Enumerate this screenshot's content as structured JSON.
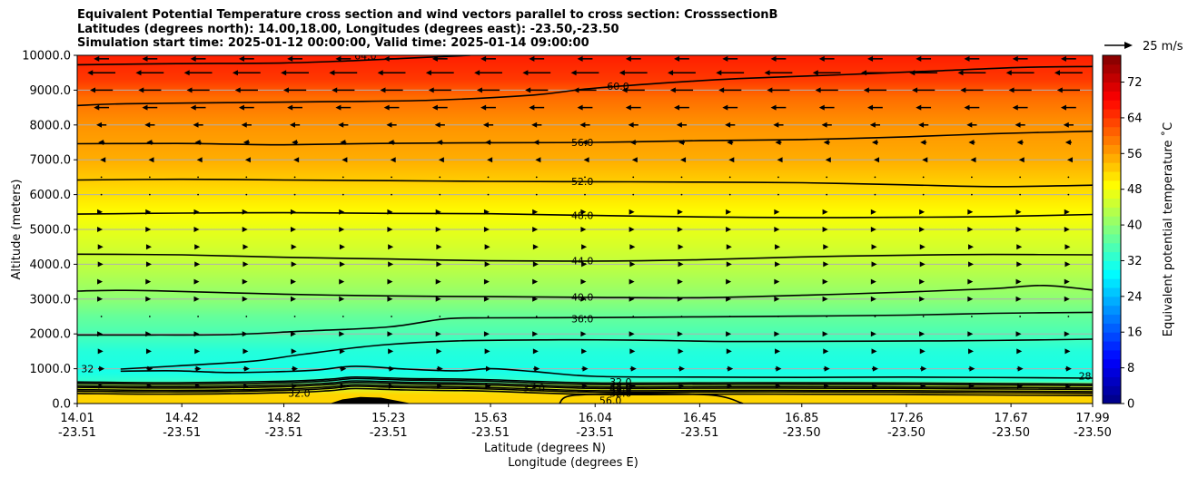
{
  "title_lines": [
    "Equivalent Potential Temperature cross section and wind vectors parallel to cross section: CrosssectionB",
    "Latitudes (degrees north): 14.00,18.00, Longitudes (degrees east): -23.50,-23.50",
    "Simulation start time: 2025-01-12 00:00:00, Valid time: 2025-01-14 09:00:00"
  ],
  "chart_data": {
    "type": "contour",
    "title": "Equivalent Potential Temperature cross section and wind vectors parallel to cross section: CrosssectionB",
    "ylabel": "Altitude (meters)",
    "xlabel_lines": [
      "Latitude (degrees N)",
      "Longitude (degrees E)"
    ],
    "ylim": [
      0,
      10000
    ],
    "yticks": [
      {
        "value": 0,
        "label": "0.0"
      },
      {
        "value": 1000,
        "label": "1000.0"
      },
      {
        "value": 2000,
        "label": "2000.0"
      },
      {
        "value": 3000,
        "label": "3000.0"
      },
      {
        "value": 4000,
        "label": "4000.0"
      },
      {
        "value": 5000,
        "label": "5000.0"
      },
      {
        "value": 6000,
        "label": "6000.0"
      },
      {
        "value": 7000,
        "label": "7000.0"
      },
      {
        "value": 8000,
        "label": "8000.0"
      },
      {
        "value": 9000,
        "label": "9000.0"
      },
      {
        "value": 10000,
        "label": "10000.0"
      }
    ],
    "xlim": [
      14.01,
      17.99
    ],
    "xticks": [
      {
        "lat": 14.01,
        "lat_label": "14.01",
        "lon_label": "-23.51"
      },
      {
        "lat": 14.42,
        "lat_label": "14.42",
        "lon_label": "-23.51"
      },
      {
        "lat": 14.82,
        "lat_label": "14.82",
        "lon_label": "-23.51"
      },
      {
        "lat": 15.23,
        "lat_label": "15.23",
        "lon_label": "-23.51"
      },
      {
        "lat": 15.63,
        "lat_label": "15.63",
        "lon_label": "-23.51"
      },
      {
        "lat": 16.04,
        "lat_label": "16.04",
        "lon_label": "-23.51"
      },
      {
        "lat": 16.45,
        "lat_label": "16.45",
        "lon_label": "-23.51"
      },
      {
        "lat": 16.85,
        "lat_label": "16.85",
        "lon_label": "-23.50"
      },
      {
        "lat": 17.26,
        "lat_label": "17.26",
        "lon_label": "-23.50"
      },
      {
        "lat": 17.67,
        "lat_label": "17.67",
        "lon_label": "-23.50"
      },
      {
        "lat": 17.99,
        "lat_label": "17.99",
        "lon_label": "-23.50"
      }
    ],
    "grid": "horizontal",
    "filled_bands": [
      {
        "alt": 0,
        "theta": 52
      },
      {
        "alt": 250,
        "theta": 52
      },
      {
        "alt": 500,
        "theta": 45
      },
      {
        "alt": 650,
        "theta": 33
      },
      {
        "alt": 900,
        "theta": 31
      },
      {
        "alt": 1500,
        "theta": 32
      },
      {
        "alt": 2000,
        "theta": 35
      },
      {
        "alt": 2500,
        "theta": 37
      },
      {
        "alt": 3000,
        "theta": 40
      },
      {
        "alt": 4000,
        "theta": 44
      },
      {
        "alt": 5000,
        "theta": 47
      },
      {
        "alt": 5500,
        "theta": 49
      },
      {
        "alt": 6000,
        "theta": 51
      },
      {
        "alt": 6500,
        "theta": 53
      },
      {
        "alt": 7000,
        "theta": 55
      },
      {
        "alt": 8000,
        "theta": 57
      },
      {
        "alt": 8800,
        "theta": 60
      },
      {
        "alt": 9300,
        "theta": 64
      },
      {
        "alt": 10000,
        "theta": 66
      }
    ],
    "contours": [
      {
        "level": 64,
        "label": "64.0",
        "label_at": [
          15.14,
          9990
        ],
        "points": [
          [
            14.01,
            9730
          ],
          [
            14.4,
            9760
          ],
          [
            14.82,
            9780
          ],
          [
            15.1,
            9850
          ],
          [
            15.4,
            9950
          ],
          [
            15.55,
            10000
          ]
        ]
      },
      {
        "level": 60,
        "label": "60.0",
        "label_at": [
          16.13,
          9110
        ],
        "points": [
          [
            14.01,
            8560
          ],
          [
            14.2,
            8610
          ],
          [
            14.6,
            8640
          ],
          [
            15.0,
            8670
          ],
          [
            15.4,
            8710
          ],
          [
            15.8,
            8860
          ],
          [
            16.0,
            9030
          ],
          [
            16.3,
            9200
          ],
          [
            16.6,
            9330
          ],
          [
            17.0,
            9440
          ],
          [
            17.4,
            9560
          ],
          [
            17.7,
            9650
          ],
          [
            17.99,
            9680
          ]
        ]
      },
      {
        "level": 56,
        "label": "56.0",
        "label_at": [
          15.99,
          7500
        ],
        "points": [
          [
            14.01,
            7460
          ],
          [
            14.4,
            7470
          ],
          [
            14.6,
            7450
          ],
          [
            14.82,
            7430
          ],
          [
            15.2,
            7470
          ],
          [
            15.63,
            7490
          ],
          [
            16.04,
            7500
          ],
          [
            16.45,
            7550
          ],
          [
            16.85,
            7580
          ],
          [
            17.26,
            7660
          ],
          [
            17.6,
            7750
          ],
          [
            17.99,
            7820
          ]
        ]
      },
      {
        "level": 52,
        "label": "52.0",
        "label_at": [
          15.99,
          6380
        ],
        "points": [
          [
            14.01,
            6420
          ],
          [
            14.42,
            6440
          ],
          [
            14.82,
            6420
          ],
          [
            15.23,
            6400
          ],
          [
            15.63,
            6380
          ],
          [
            16.04,
            6370
          ],
          [
            16.45,
            6360
          ],
          [
            16.85,
            6340
          ],
          [
            17.26,
            6280
          ],
          [
            17.6,
            6230
          ],
          [
            17.99,
            6270
          ]
        ]
      },
      {
        "level": 48,
        "label": "48.0",
        "label_at": [
          15.99,
          5400
        ],
        "points": [
          [
            14.01,
            5440
          ],
          [
            14.42,
            5470
          ],
          [
            14.82,
            5480
          ],
          [
            15.23,
            5460
          ],
          [
            15.63,
            5450
          ],
          [
            16.04,
            5400
          ],
          [
            16.45,
            5360
          ],
          [
            16.85,
            5340
          ],
          [
            17.26,
            5350
          ],
          [
            17.6,
            5370
          ],
          [
            17.99,
            5430
          ]
        ]
      },
      {
        "level": 44,
        "label": "44.0",
        "label_at": [
          15.99,
          4100
        ],
        "points": [
          [
            14.01,
            4290
          ],
          [
            14.42,
            4270
          ],
          [
            14.82,
            4200
          ],
          [
            15.23,
            4150
          ],
          [
            15.63,
            4100
          ],
          [
            16.04,
            4090
          ],
          [
            16.45,
            4130
          ],
          [
            16.85,
            4210
          ],
          [
            17.26,
            4260
          ],
          [
            17.6,
            4280
          ],
          [
            17.99,
            4270
          ]
        ]
      },
      {
        "level": 40,
        "label": "40.0",
        "label_at": [
          15.99,
          3060
        ],
        "points": [
          [
            14.01,
            3230
          ],
          [
            14.2,
            3250
          ],
          [
            14.42,
            3220
          ],
          [
            14.82,
            3140
          ],
          [
            15.23,
            3090
          ],
          [
            15.63,
            3070
          ],
          [
            16.04,
            3050
          ],
          [
            16.45,
            3040
          ],
          [
            16.85,
            3110
          ],
          [
            17.26,
            3200
          ],
          [
            17.6,
            3300
          ],
          [
            17.8,
            3390
          ],
          [
            17.99,
            3260
          ]
        ]
      },
      {
        "level": 36,
        "label": "36.0",
        "label_at": [
          15.99,
          2430
        ],
        "points": [
          [
            14.01,
            1970
          ],
          [
            14.3,
            1970
          ],
          [
            14.6,
            1980
          ],
          [
            14.9,
            2080
          ],
          [
            15.23,
            2200
          ],
          [
            15.45,
            2430
          ],
          [
            15.63,
            2460
          ],
          [
            16.04,
            2470
          ],
          [
            16.45,
            2490
          ],
          [
            16.85,
            2510
          ],
          [
            17.26,
            2540
          ],
          [
            17.6,
            2590
          ],
          [
            17.99,
            2620
          ]
        ]
      },
      {
        "level": 32,
        "label": "32.0",
        "label_at": [
          15.8,
          450
        ],
        "points": [
          [
            14.18,
            990
          ],
          [
            14.4,
            1080
          ],
          [
            14.7,
            1220
          ],
          [
            14.9,
            1420
          ],
          [
            15.2,
            1680
          ],
          [
            15.5,
            1800
          ],
          [
            15.9,
            1830
          ],
          [
            16.2,
            1820
          ],
          [
            16.6,
            1780
          ],
          [
            17.0,
            1790
          ],
          [
            17.4,
            1800
          ],
          [
            17.7,
            1820
          ],
          [
            17.99,
            1850
          ]
        ]
      },
      {
        "level": 32,
        "label": "32.0",
        "label_at": [
          14.88,
          300
        ],
        "points": [
          [
            14.18,
            930
          ],
          [
            14.4,
            940
          ],
          [
            14.6,
            890
          ],
          [
            14.82,
            920
          ],
          [
            14.95,
            960
          ],
          [
            15.1,
            1070
          ],
          [
            15.3,
            990
          ],
          [
            15.5,
            940
          ],
          [
            15.63,
            1000
          ],
          [
            15.8,
            920
          ],
          [
            16.04,
            780
          ],
          [
            16.45,
            760
          ],
          [
            16.85,
            750
          ],
          [
            17.26,
            760
          ],
          [
            17.99,
            730
          ]
        ]
      }
    ],
    "contour_labels_extra": [
      {
        "label": "32.0",
        "at": [
          16.14,
          620
        ]
      },
      {
        "label": "48.0",
        "at": [
          16.14,
          510
        ]
      },
      {
        "label": "44.0",
        "at": [
          16.14,
          470
        ]
      },
      {
        "label": "40.0",
        "at": [
          16.14,
          430
        ]
      },
      {
        "label": "32.0",
        "at": [
          16.14,
          300
        ]
      },
      {
        "label": "56.0",
        "at": [
          16.1,
          90
        ]
      },
      {
        "label": "32",
        "at": [
          14.05,
          1000
        ]
      },
      {
        "label": "28",
        "at": [
          17.96,
          800
        ]
      }
    ],
    "terrain": [
      [
        15.0,
        0
      ],
      [
        15.05,
        120
      ],
      [
        15.12,
        190
      ],
      [
        15.2,
        170
      ],
      [
        15.28,
        60
      ],
      [
        15.32,
        0
      ]
    ],
    "wind_rows": [
      {
        "alt": 9900,
        "speed": -12
      },
      {
        "alt": 9500,
        "speed": -22
      },
      {
        "alt": 9000,
        "speed": -18
      },
      {
        "alt": 8500,
        "speed": -12
      },
      {
        "alt": 8000,
        "speed": -8
      },
      {
        "alt": 7500,
        "speed": -5
      },
      {
        "alt": 7000,
        "speed": -2
      },
      {
        "alt": 6500,
        "speed": 0
      },
      {
        "alt": 6000,
        "speed": 1
      },
      {
        "alt": 5500,
        "speed": 2
      },
      {
        "alt": 5000,
        "speed": 2
      },
      {
        "alt": 4500,
        "speed": 3
      },
      {
        "alt": 4000,
        "speed": 3
      },
      {
        "alt": 3500,
        "speed": 2
      },
      {
        "alt": 3000,
        "speed": 2
      },
      {
        "alt": 2500,
        "speed": 1
      },
      {
        "alt": 2000,
        "speed": 2
      },
      {
        "alt": 1500,
        "speed": 3
      },
      {
        "alt": 1000,
        "speed": 5
      },
      {
        "alt": 500,
        "speed": 4
      }
    ],
    "wind_key": {
      "label": "25 m/s",
      "speed": 25
    },
    "colorbar": {
      "label": "Equivalent potential temperature $^\\circ$C",
      "label_display": "Equivalent potential temperature ˚C",
      "min": 0,
      "max": 78,
      "step": 2,
      "ticks": [
        0,
        8,
        16,
        24,
        32,
        40,
        48,
        56,
        64,
        72
      ]
    }
  }
}
